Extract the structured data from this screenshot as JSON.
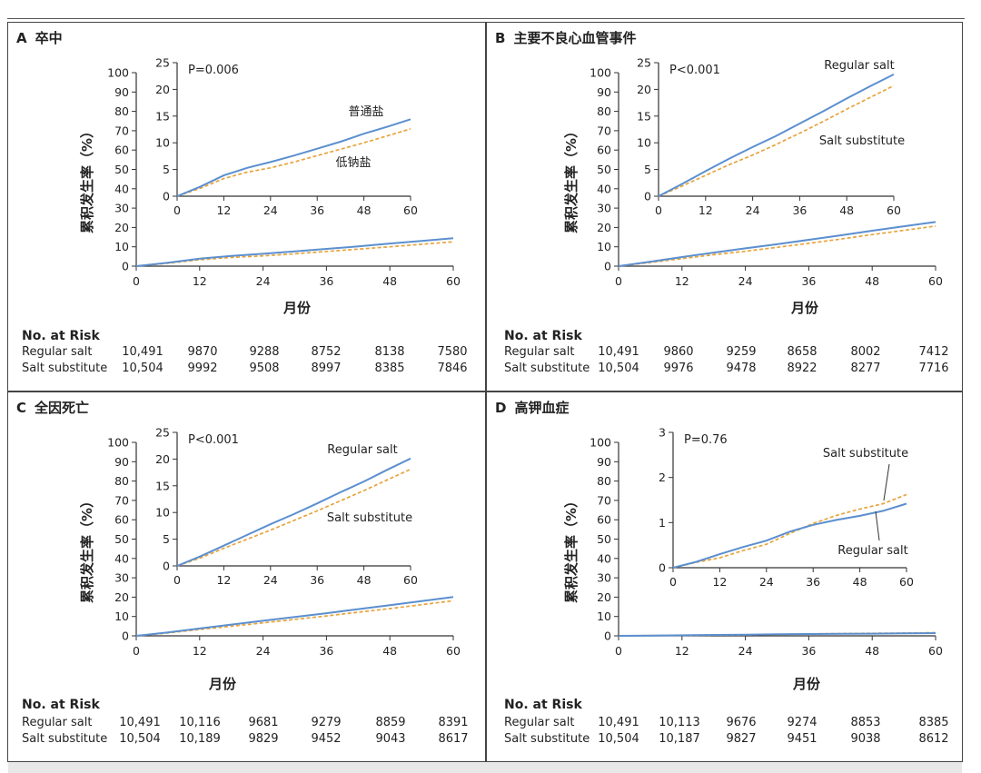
{
  "colors": {
    "regular": "#5b8fcf",
    "substitute": "#e8a33b",
    "axis": "#333333"
  },
  "x_axis_label": "月份",
  "y_axis_label": "累积发生率（%）",
  "risk_header": "No. at Risk",
  "chart_data": [
    {
      "type": "line",
      "panel_letter": "A",
      "title": "卒中",
      "p_value": "P=0.006",
      "x_ticks": [
        0,
        12,
        24,
        36,
        48,
        60
      ],
      "main_y_ticks": [
        0,
        10,
        20,
        30,
        40,
        50,
        60,
        70,
        80,
        90,
        100
      ],
      "xlim": [
        0,
        60
      ],
      "ylim": [
        0,
        100
      ],
      "inset_ylim": [
        0,
        25
      ],
      "inset_y_ticks": [
        0,
        5,
        10,
        15,
        20,
        25
      ],
      "series": [
        {
          "name": "普通盐",
          "key": "regular",
          "x": [
            0,
            6,
            12,
            18,
            24,
            30,
            36,
            42,
            48,
            54,
            60
          ],
          "y": [
            0,
            1.8,
            3.9,
            5.3,
            6.4,
            7.6,
            8.9,
            10.2,
            11.7,
            13.0,
            14.4
          ]
        },
        {
          "name": "低钠盐",
          "key": "substitute",
          "x": [
            0,
            6,
            12,
            18,
            24,
            30,
            36,
            42,
            48,
            54,
            60
          ],
          "y": [
            0,
            1.5,
            3.3,
            4.5,
            5.3,
            6.4,
            7.6,
            8.8,
            10.0,
            11.3,
            12.6
          ]
        }
      ],
      "inset_labels": [
        {
          "text": "普通盐",
          "series": "regular"
        },
        {
          "text": "低钠盐",
          "series": "substitute"
        }
      ],
      "risk_table": [
        {
          "label": "Regular salt",
          "values": [
            "10,491",
            "9870",
            "9288",
            "8752",
            "8138",
            "7580"
          ]
        },
        {
          "label": "Salt substitute",
          "values": [
            "10,504",
            "9992",
            "9508",
            "8997",
            "8385",
            "7846"
          ]
        }
      ]
    },
    {
      "type": "line",
      "panel_letter": "B",
      "title": "主要不良心血管事件",
      "p_value": "P<0.001",
      "x_ticks": [
        0,
        12,
        24,
        36,
        48,
        60
      ],
      "main_y_ticks": [
        0,
        10,
        20,
        30,
        40,
        50,
        60,
        70,
        80,
        90,
        100
      ],
      "xlim": [
        0,
        60
      ],
      "ylim": [
        0,
        100
      ],
      "inset_ylim": [
        0,
        25
      ],
      "inset_y_ticks": [
        0,
        5,
        10,
        15,
        20,
        25
      ],
      "series": [
        {
          "name": "Regular salt",
          "key": "regular",
          "x": [
            0,
            6,
            12,
            18,
            24,
            30,
            36,
            42,
            48,
            54,
            60
          ],
          "y": [
            0,
            2.3,
            4.7,
            7.0,
            9.2,
            11.3,
            13.6,
            15.9,
            18.3,
            20.6,
            22.8
          ]
        },
        {
          "name": "Salt substitute",
          "key": "substitute",
          "x": [
            0,
            6,
            12,
            18,
            24,
            30,
            36,
            42,
            48,
            54,
            60
          ],
          "y": [
            0,
            1.9,
            3.9,
            5.9,
            7.7,
            9.7,
            11.8,
            14.0,
            16.3,
            18.5,
            20.7
          ]
        }
      ],
      "inset_labels": [
        {
          "text": "Regular salt",
          "series": "regular"
        },
        {
          "text": "Salt substitute",
          "series": "substitute"
        }
      ],
      "risk_table": [
        {
          "label": "Regular salt",
          "values": [
            "10,491",
            "9860",
            "9259",
            "8658",
            "8002",
            "7412"
          ]
        },
        {
          "label": "Salt substitute",
          "values": [
            "10,504",
            "9976",
            "9478",
            "8922",
            "8277",
            "7716"
          ]
        }
      ]
    },
    {
      "type": "line",
      "panel_letter": "C",
      "title": "全因死亡",
      "p_value": "P<0.001",
      "x_ticks": [
        0,
        12,
        24,
        36,
        48,
        60
      ],
      "main_y_ticks": [
        0,
        10,
        20,
        30,
        40,
        50,
        60,
        70,
        80,
        90,
        100
      ],
      "xlim": [
        0,
        60
      ],
      "ylim": [
        0,
        100
      ],
      "inset_ylim": [
        0,
        25
      ],
      "inset_y_ticks": [
        0,
        5,
        10,
        15,
        20,
        25
      ],
      "series": [
        {
          "name": "Regular salt",
          "key": "regular",
          "x": [
            0,
            6,
            12,
            18,
            24,
            30,
            36,
            42,
            48,
            54,
            60
          ],
          "y": [
            0,
            1.8,
            3.8,
            5.8,
            7.8,
            9.7,
            11.7,
            13.8,
            15.8,
            18.0,
            20.1
          ]
        },
        {
          "name": "Salt substitute",
          "key": "substitute",
          "x": [
            0,
            6,
            12,
            18,
            24,
            30,
            36,
            42,
            48,
            54,
            60
          ],
          "y": [
            0,
            1.5,
            3.3,
            5.0,
            6.7,
            8.5,
            10.3,
            12.2,
            14.1,
            16.1,
            18.1
          ]
        }
      ],
      "inset_labels": [
        {
          "text": "Regular salt",
          "series": "regular"
        },
        {
          "text": "Salt substitute",
          "series": "substitute"
        }
      ],
      "risk_table": [
        {
          "label": "Regular salt",
          "values": [
            "10,491",
            "10,116",
            "9681",
            "9279",
            "8859",
            "8391"
          ]
        },
        {
          "label": "Salt substitute",
          "values": [
            "10,504",
            "10,189",
            "9829",
            "9452",
            "9043",
            "8617"
          ]
        }
      ]
    },
    {
      "type": "line",
      "panel_letter": "D",
      "title": "高钾血症",
      "p_value": "P=0.76",
      "x_ticks": [
        0,
        12,
        24,
        36,
        48,
        60
      ],
      "main_y_ticks": [
        0,
        10,
        20,
        30,
        40,
        50,
        60,
        70,
        80,
        90,
        100
      ],
      "xlim": [
        0,
        60
      ],
      "ylim": [
        0,
        100
      ],
      "inset_ylim": [
        0,
        3
      ],
      "inset_y_ticks": [
        0,
        1,
        2,
        3
      ],
      "series": [
        {
          "name": "Regular salt",
          "key": "regular",
          "x": [
            0,
            6,
            12,
            18,
            24,
            30,
            36,
            42,
            48,
            54,
            60
          ],
          "y": [
            0,
            0.13,
            0.3,
            0.46,
            0.6,
            0.8,
            0.95,
            1.06,
            1.15,
            1.26,
            1.42
          ]
        },
        {
          "name": "Salt substitute",
          "key": "substitute",
          "x": [
            0,
            6,
            12,
            18,
            24,
            30,
            36,
            42,
            48,
            54,
            60
          ],
          "y": [
            0,
            0.12,
            0.22,
            0.38,
            0.52,
            0.76,
            0.98,
            1.16,
            1.3,
            1.42,
            1.62
          ]
        }
      ],
      "inset_labels": [
        {
          "text": "Salt substitute",
          "series": "substitute"
        },
        {
          "text": "Regular salt",
          "series": "regular"
        }
      ],
      "risk_table": [
        {
          "label": "Regular salt",
          "values": [
            "10,491",
            "10,113",
            "9676",
            "9274",
            "8853",
            "8385"
          ]
        },
        {
          "label": "Salt substitute",
          "values": [
            "10,504",
            "10,187",
            "9827",
            "9451",
            "9038",
            "8612"
          ]
        }
      ]
    }
  ]
}
